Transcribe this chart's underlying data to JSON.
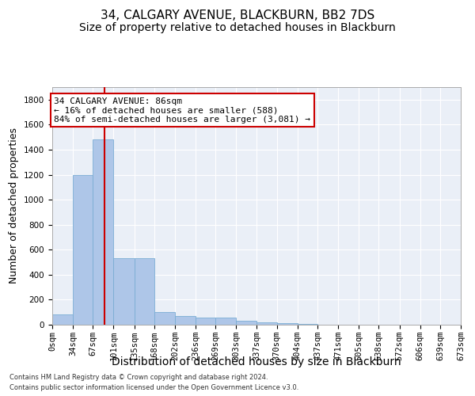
{
  "title": "34, CALGARY AVENUE, BLACKBURN, BB2 7DS",
  "subtitle": "Size of property relative to detached houses in Blackburn",
  "xlabel": "Distribution of detached houses by size in Blackburn",
  "ylabel": "Number of detached properties",
  "footer_line1": "Contains HM Land Registry data © Crown copyright and database right 2024.",
  "footer_line2": "Contains public sector information licensed under the Open Government Licence v3.0.",
  "bin_edges": [
    0,
    34,
    67,
    101,
    135,
    168,
    202,
    236,
    269,
    303,
    337,
    370,
    404,
    437,
    471,
    505,
    538,
    572,
    606,
    639,
    673
  ],
  "bin_labels": [
    "0sqm",
    "34sqm",
    "67sqm",
    "101sqm",
    "135sqm",
    "168sqm",
    "202sqm",
    "236sqm",
    "269sqm",
    "303sqm",
    "337sqm",
    "370sqm",
    "404sqm",
    "437sqm",
    "471sqm",
    "505sqm",
    "538sqm",
    "572sqm",
    "606sqm",
    "639sqm",
    "673sqm"
  ],
  "bar_heights": [
    80,
    1200,
    1480,
    530,
    530,
    100,
    70,
    60,
    55,
    30,
    20,
    12,
    5,
    0,
    0,
    0,
    0,
    0,
    0,
    0
  ],
  "bar_color": "#aec6e8",
  "bar_edge_color": "#7aadd4",
  "property_size": 86,
  "property_line_color": "#cc0000",
  "annotation_line1": "34 CALGARY AVENUE: 86sqm",
  "annotation_line2": "← 16% of detached houses are smaller (588)",
  "annotation_line3": "84% of semi-detached houses are larger (3,081) →",
  "annotation_box_color": "#ffffff",
  "annotation_box_edge_color": "#cc0000",
  "ylim": [
    0,
    1900
  ],
  "yticks": [
    0,
    200,
    400,
    600,
    800,
    1000,
    1200,
    1400,
    1600,
    1800
  ],
  "background_color": "#eaeff7",
  "grid_color": "#ffffff",
  "title_fontsize": 11,
  "subtitle_fontsize": 10,
  "axis_label_fontsize": 9,
  "tick_fontsize": 7.5,
  "annotation_fontsize": 8,
  "footer_fontsize": 6
}
